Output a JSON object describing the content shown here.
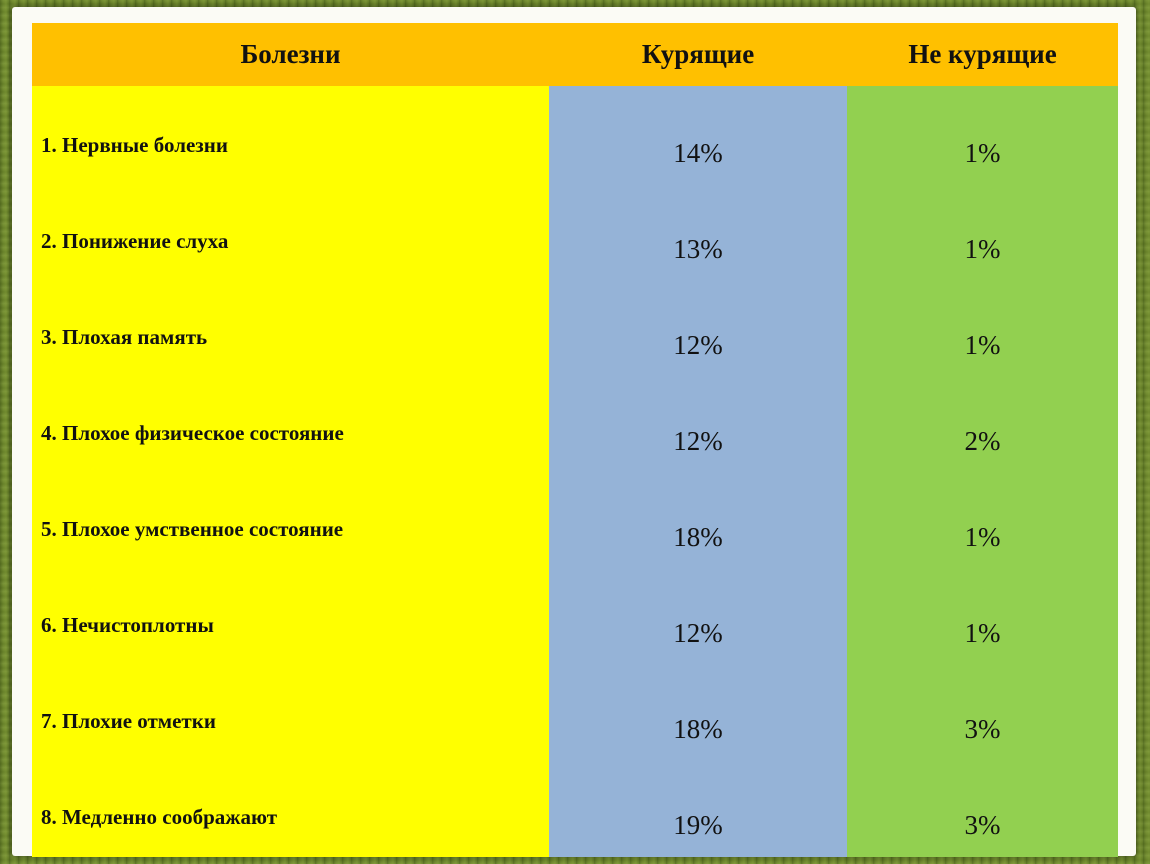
{
  "table": {
    "headers": {
      "disease": "Болезни",
      "smokers": "Курящие",
      "nonsmokers": "Не курящие"
    },
    "rows": [
      {
        "disease": "1. Нервные болезни",
        "smokers": "14%",
        "nonsmokers": "1%"
      },
      {
        "disease": "2. Понижение слуха",
        "smokers": "13%",
        "nonsmokers": "1%"
      },
      {
        "disease": "3. Плохая память",
        "smokers": "12%",
        "nonsmokers": "1%"
      },
      {
        "disease": "4. Плохое физическое состояние",
        "smokers": "12%",
        "nonsmokers": "2%"
      },
      {
        "disease": "5. Плохое умственное состояние",
        "smokers": "18%",
        "nonsmokers": "1%"
      },
      {
        "disease": "6. Нечистоплотны",
        "smokers": "12%",
        "nonsmokers": "1%"
      },
      {
        "disease": "7. Плохие отметки",
        "smokers": "18%",
        "nonsmokers": "3%"
      },
      {
        "disease": "8. Медленно соображают",
        "smokers": "19%",
        "nonsmokers": "3%"
      }
    ]
  },
  "colors": {
    "header": "#ffc000",
    "disease_column": "#ffff00",
    "smokers_column": "#95b3d7",
    "nonsmokers_column": "#92d050"
  }
}
